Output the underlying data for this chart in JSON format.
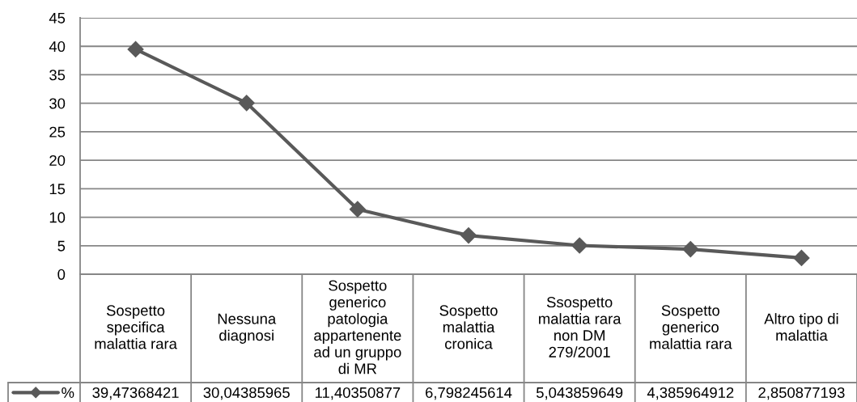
{
  "chart_data": {
    "type": "line",
    "categories": [
      "Sospetto specifica malattia rara",
      "Nessuna diagnosi",
      "Sospetto generico patologia appartenente ad un gruppo di MR",
      "Sospetto malattia cronica",
      "Ssospetto malattia rara non DM 279/2001",
      "Sospetto generico malattia rara",
      "Altro tipo di malattia"
    ],
    "series": [
      {
        "name": "%",
        "color": "#595959",
        "values": [
          39.47368421,
          30.04385965,
          11.40350877,
          6.798245614,
          5.043859649,
          4.385964912,
          2.850877193
        ],
        "value_labels": [
          "39,47368421",
          "30,04385965",
          "11,40350877",
          "6,798245614",
          "5,043859649",
          "4,385964912",
          "2,850877193"
        ]
      }
    ],
    "ylim": [
      0,
      45
    ],
    "yticks": [
      0,
      5,
      10,
      15,
      20,
      25,
      30,
      35,
      40,
      45
    ],
    "grid": "y",
    "legend": "bottom",
    "marker": "diamond",
    "line_style": "solid"
  }
}
